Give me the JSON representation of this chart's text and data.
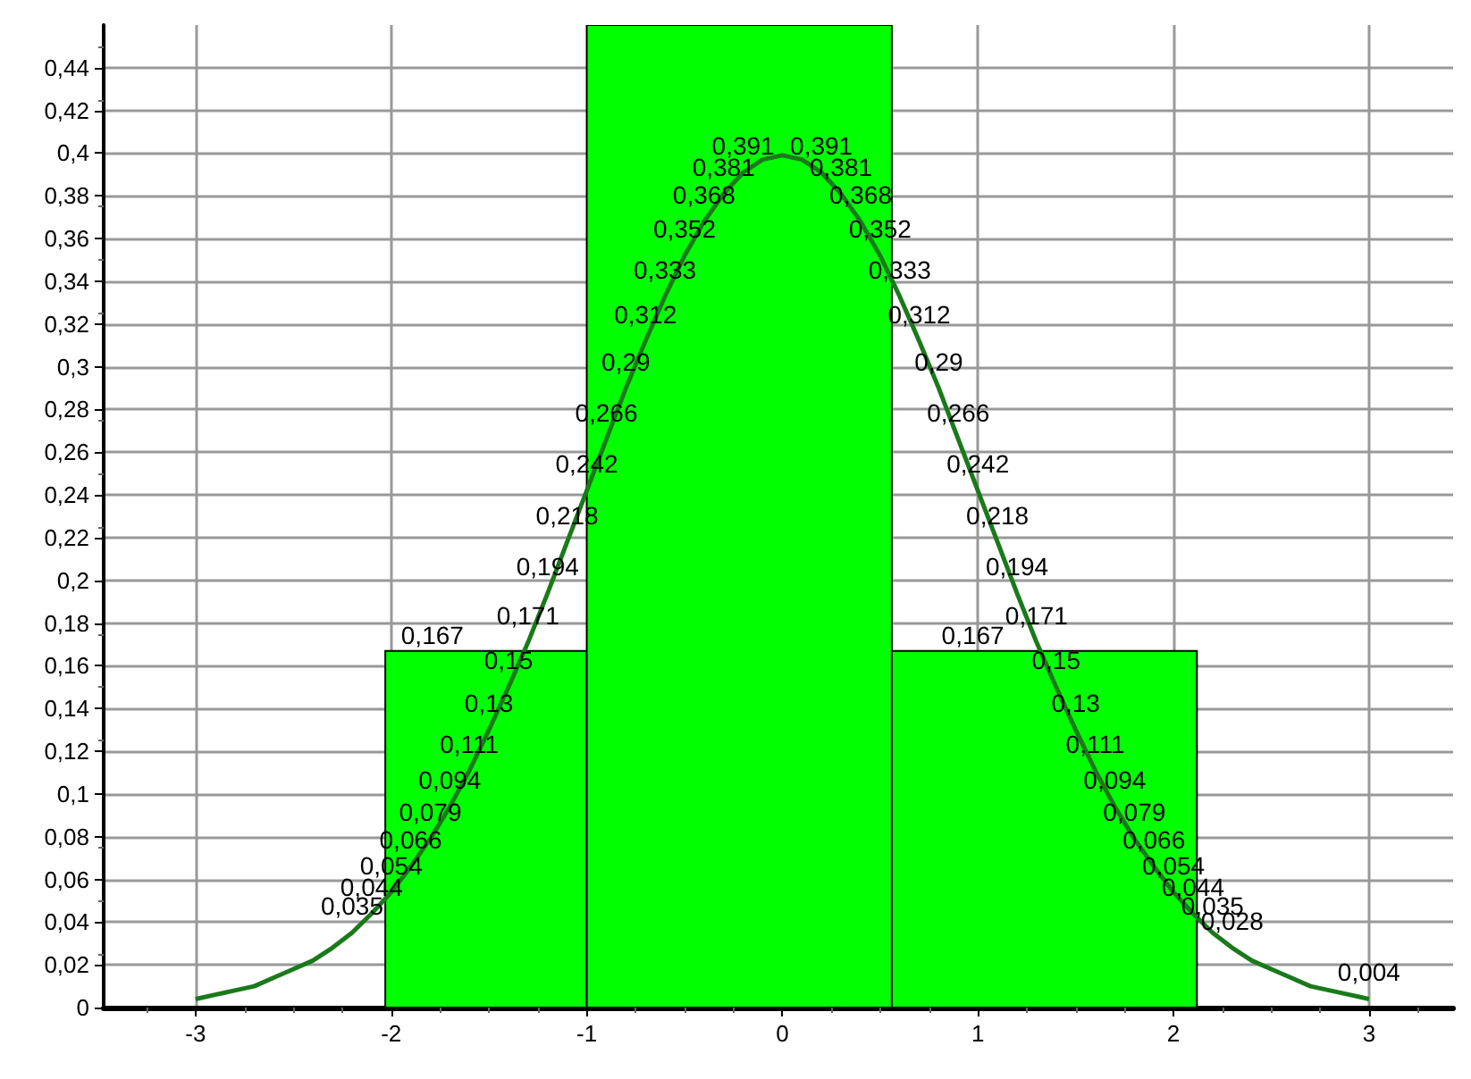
{
  "chart_data": {
    "type": "histogram",
    "bins": [
      -2.03,
      -1.0,
      0.56,
      2.12
    ],
    "series": [
      {
        "color": "#00ff00",
        "values": [
          0.167,
          0.46,
          0.167
        ],
        "value_labels": [
          "0,167",
          null,
          "0,167"
        ]
      },
      {
        "type": "line",
        "color": "#1a7a1a",
        "x": [
          -3,
          -2.9,
          -2.8,
          -2.7,
          -2.6,
          -2.5,
          -2.4,
          -2.3,
          -2.2,
          -2.1,
          -2,
          -1.9,
          -1.8,
          -1.7,
          -1.6,
          -1.5,
          -1.4,
          -1.3,
          -1.2,
          -1.1,
          -1,
          -0.9,
          -0.8,
          -0.7,
          -0.6,
          -0.5,
          -0.4,
          -0.3,
          -0.2,
          -0.1,
          0,
          0.1,
          0.2,
          0.3,
          0.4,
          0.5,
          0.6,
          0.7,
          0.8,
          0.9,
          1,
          1.1,
          1.2,
          1.3,
          1.4,
          1.5,
          1.6,
          1.7,
          1.8,
          1.9,
          2,
          2.1,
          2.2,
          2.3,
          2.4,
          2.5,
          2.6,
          2.7,
          2.8,
          2.9,
          3
        ],
        "values": [
          0.004,
          0.006,
          0.008,
          0.01,
          0.014,
          0.018,
          0.022,
          0.028,
          0.035,
          0.044,
          0.054,
          0.066,
          0.079,
          0.094,
          0.111,
          0.13,
          0.15,
          0.171,
          0.194,
          0.218,
          0.242,
          0.266,
          0.29,
          0.312,
          0.333,
          0.352,
          0.368,
          0.381,
          0.391,
          0.397,
          0.399,
          0.397,
          0.391,
          0.381,
          0.368,
          0.352,
          0.333,
          0.312,
          0.29,
          0.266,
          0.242,
          0.218,
          0.194,
          0.171,
          0.15,
          0.13,
          0.111,
          0.094,
          0.079,
          0.066,
          0.054,
          0.044,
          0.035,
          0.028,
          0.022,
          0.018,
          0.014,
          0.01,
          0.008,
          0.006,
          0.004
        ],
        "value_labels": [
          null,
          null,
          null,
          null,
          null,
          null,
          null,
          null,
          "0,035",
          "0,044",
          "0,054",
          "0,066",
          "0,079",
          "0,094",
          "0,111",
          "0,13",
          "0,15",
          "0,171",
          "0,194",
          "0,218",
          "0,242",
          "0,266",
          "0,29",
          "0,312",
          "0,333",
          "0,352",
          "0,368",
          "0,381",
          "0,391",
          null,
          null,
          null,
          "0,391",
          "0,381",
          "0,368",
          "0,352",
          "0,333",
          "0,312",
          "0,29",
          "0,266",
          "0,242",
          "0,218",
          "0,194",
          "0,171",
          "0,15",
          "0,13",
          "0,111",
          "0,094",
          "0,079",
          "0,066",
          "0,054",
          "0,044",
          "0,035",
          "0,028",
          null,
          null,
          null,
          null,
          null,
          null,
          "0,004"
        ]
      }
    ],
    "xlim": [
      -3.47,
      3.43
    ],
    "xticks": [
      -3,
      -2,
      -1,
      0,
      1,
      2,
      3
    ],
    "ylim": [
      0,
      0.46
    ],
    "yticks": [
      0,
      {
        "value": 0.02,
        "label": "0,02"
      },
      {
        "value": 0.04,
        "label": "0,04"
      },
      {
        "value": 0.06,
        "label": "0,06"
      },
      {
        "value": 0.08,
        "label": "0,08"
      },
      {
        "value": 0.1,
        "label": "0,1"
      },
      {
        "value": 0.12,
        "label": "0,12"
      },
      {
        "value": 0.14,
        "label": "0,14"
      },
      {
        "value": 0.16,
        "label": "0,16"
      },
      {
        "value": 0.18,
        "label": "0,18"
      },
      {
        "value": 0.2,
        "label": "0,2"
      },
      {
        "value": 0.22,
        "label": "0,22"
      },
      {
        "value": 0.24,
        "label": "0,24"
      },
      {
        "value": 0.26,
        "label": "0,26"
      },
      {
        "value": 0.28,
        "label": "0,28"
      },
      {
        "value": 0.3,
        "label": "0,3"
      },
      {
        "value": 0.32,
        "label": "0,32"
      },
      {
        "value": 0.34,
        "label": "0,34"
      },
      {
        "value": 0.36,
        "label": "0,36"
      },
      {
        "value": 0.38,
        "label": "0,38"
      },
      {
        "value": 0.4,
        "label": "0,4"
      },
      {
        "value": 0.42,
        "label": "0,42"
      },
      {
        "value": 0.44,
        "label": "0,44"
      }
    ],
    "grid": true
  }
}
